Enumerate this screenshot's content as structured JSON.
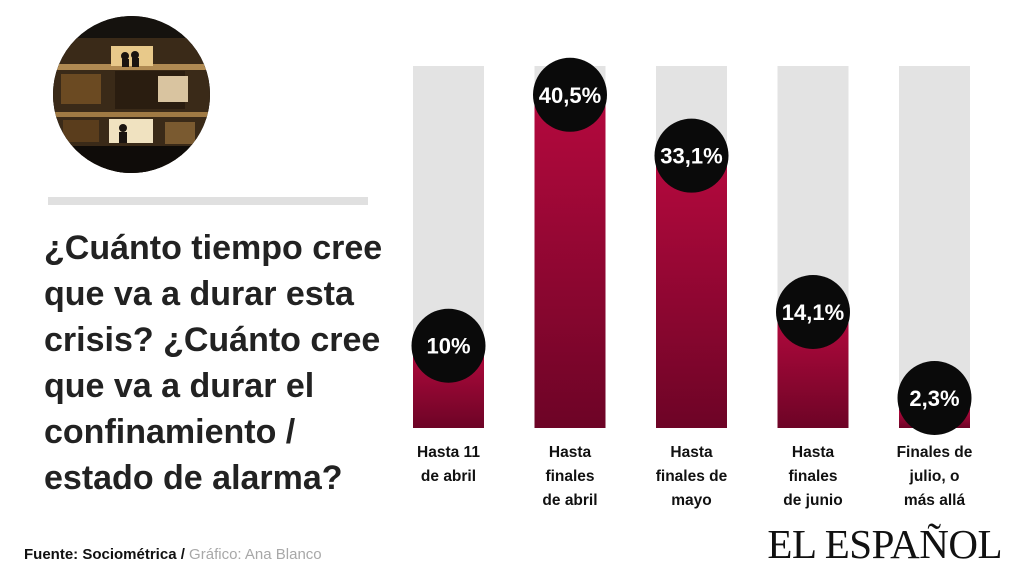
{
  "question": "¿Cuánto tiempo cree que va a durar esta crisis? ¿Cuánto cree que va a durar el confinamiento / estado de alarma?",
  "source": {
    "label": "Fuente: Sociométrica",
    "separator": " /",
    "credit": " Gráfico: Ana Blanco"
  },
  "brand": "EL ESPAÑOL",
  "colors": {
    "bar_top": "#b5093e",
    "bar_bottom": "#6d0426",
    "track": "#e3e3e3",
    "bubble": "#0a0a0a"
  },
  "chart_data": {
    "type": "bar",
    "categories": [
      [
        "Hasta 11",
        "de abril"
      ],
      [
        "Hasta",
        "finales",
        "de abril"
      ],
      [
        "Hasta",
        "finales de",
        "mayo"
      ],
      [
        "Hasta",
        "finales",
        "de junio"
      ],
      [
        "Finales de",
        "julio, o",
        "más allá"
      ]
    ],
    "values": [
      10,
      40.5,
      33.1,
      14.1,
      2.3
    ],
    "value_labels": [
      "10%",
      "40,5%",
      "33,1%",
      "14,1%",
      "2,3%"
    ],
    "ylim": [
      0,
      44
    ]
  }
}
